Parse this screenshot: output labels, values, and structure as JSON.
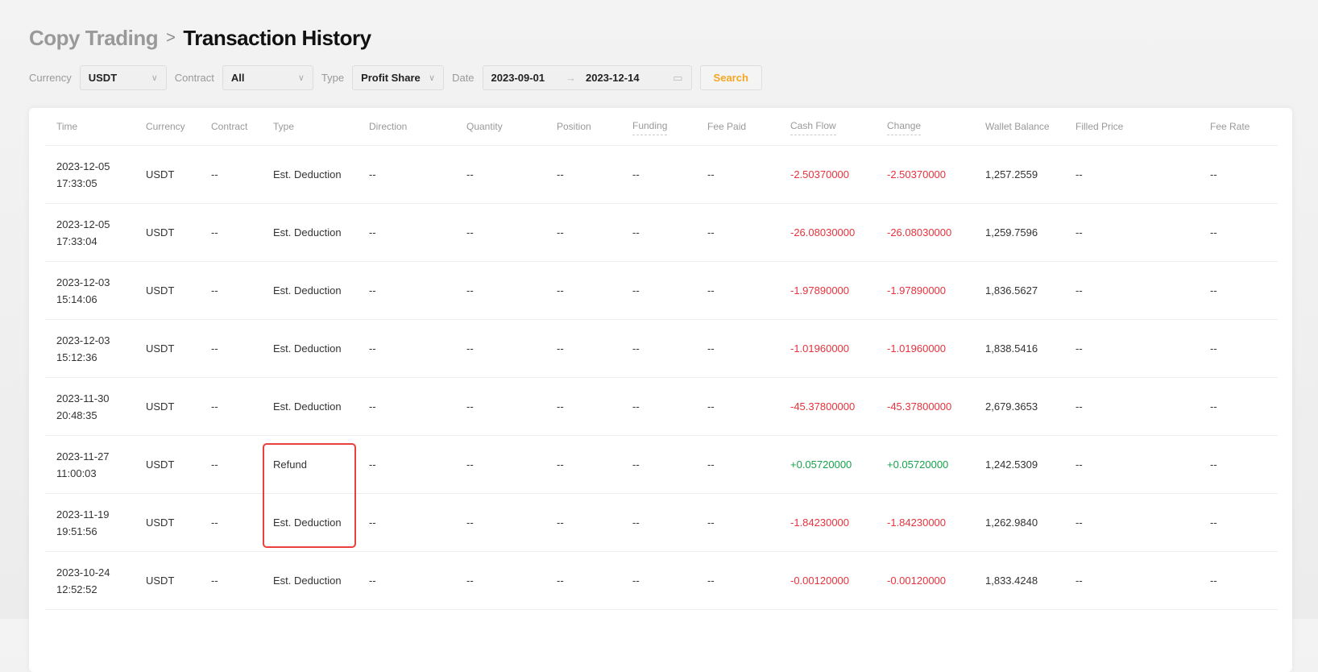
{
  "breadcrumb": {
    "parent": "Copy Trading",
    "separator": ">",
    "current": "Transaction History"
  },
  "filters": {
    "currency_label": "Currency",
    "currency": "USDT",
    "contract_label": "Contract",
    "contract": "All",
    "type_label": "Type",
    "type": "Profit Share",
    "date_label": "Date",
    "date_from": "2023-09-01",
    "date_arrow": "→",
    "date_to": "2023-12-14",
    "search": "Search"
  },
  "columns": [
    "Time",
    "Currency",
    "Contract",
    "Type",
    "Direction",
    "Quantity",
    "Position",
    "Funding",
    "Fee Paid",
    "Cash Flow",
    "Change",
    "Wallet Balance",
    "Filled Price",
    "Fee Rate"
  ],
  "rows": [
    {
      "date": "2023-12-05",
      "time": "17:33:05",
      "currency": "USDT",
      "contract": "--",
      "type": "Est. Deduction",
      "direction": "--",
      "quantity": "--",
      "position": "--",
      "funding": "--",
      "fee_paid": "--",
      "cash_flow": "-2.50370000",
      "change": "-2.50370000",
      "wallet_balance": "1,257.2559",
      "filled_price": "--",
      "fee_rate": "--"
    },
    {
      "date": "2023-12-05",
      "time": "17:33:04",
      "currency": "USDT",
      "contract": "--",
      "type": "Est. Deduction",
      "direction": "--",
      "quantity": "--",
      "position": "--",
      "funding": "--",
      "fee_paid": "--",
      "cash_flow": "-26.08030000",
      "change": "-26.08030000",
      "wallet_balance": "1,259.7596",
      "filled_price": "--",
      "fee_rate": "--"
    },
    {
      "date": "2023-12-03",
      "time": "15:14:06",
      "currency": "USDT",
      "contract": "--",
      "type": "Est. Deduction",
      "direction": "--",
      "quantity": "--",
      "position": "--",
      "funding": "--",
      "fee_paid": "--",
      "cash_flow": "-1.97890000",
      "change": "-1.97890000",
      "wallet_balance": "1,836.5627",
      "filled_price": "--",
      "fee_rate": "--"
    },
    {
      "date": "2023-12-03",
      "time": "15:12:36",
      "currency": "USDT",
      "contract": "--",
      "type": "Est. Deduction",
      "direction": "--",
      "quantity": "--",
      "position": "--",
      "funding": "--",
      "fee_paid": "--",
      "cash_flow": "-1.01960000",
      "change": "-1.01960000",
      "wallet_balance": "1,838.5416",
      "filled_price": "--",
      "fee_rate": "--"
    },
    {
      "date": "2023-11-30",
      "time": "20:48:35",
      "currency": "USDT",
      "contract": "--",
      "type": "Est. Deduction",
      "direction": "--",
      "quantity": "--",
      "position": "--",
      "funding": "--",
      "fee_paid": "--",
      "cash_flow": "-45.37800000",
      "change": "-45.37800000",
      "wallet_balance": "2,679.3653",
      "filled_price": "--",
      "fee_rate": "--"
    },
    {
      "date": "2023-11-27",
      "time": "11:00:03",
      "currency": "USDT",
      "contract": "--",
      "type": "Refund",
      "direction": "--",
      "quantity": "--",
      "position": "--",
      "funding": "--",
      "fee_paid": "--",
      "cash_flow": "+0.05720000",
      "change": "+0.05720000",
      "wallet_balance": "1,242.5309",
      "filled_price": "--",
      "fee_rate": "--"
    },
    {
      "date": "2023-11-19",
      "time": "19:51:56",
      "currency": "USDT",
      "contract": "--",
      "type": "Est. Deduction",
      "direction": "--",
      "quantity": "--",
      "position": "--",
      "funding": "--",
      "fee_paid": "--",
      "cash_flow": "-1.84230000",
      "change": "-1.84230000",
      "wallet_balance": "1,262.9840",
      "filled_price": "--",
      "fee_rate": "--"
    },
    {
      "date": "2023-10-24",
      "time": "12:52:52",
      "currency": "USDT",
      "contract": "--",
      "type": "Est. Deduction",
      "direction": "--",
      "quantity": "--",
      "position": "--",
      "funding": "--",
      "fee_paid": "--",
      "cash_flow": "-0.00120000",
      "change": "-0.00120000",
      "wallet_balance": "1,833.4248",
      "filled_price": "--",
      "fee_rate": "--"
    }
  ],
  "colors": {
    "negative": "#e8323c",
    "positive": "#16a34a",
    "accent": "#f5a623",
    "highlight": "#e8403c"
  }
}
